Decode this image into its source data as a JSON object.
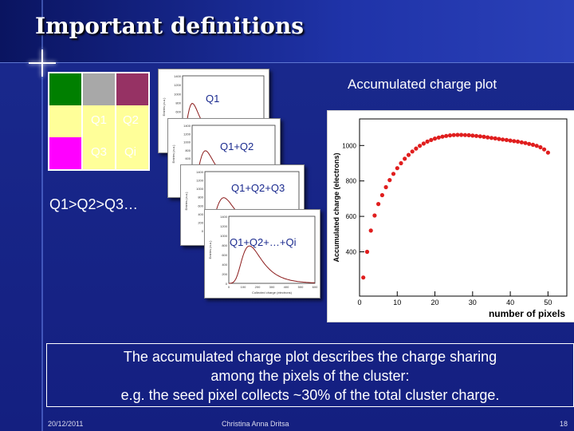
{
  "slide": {
    "title": "Important definitions",
    "accumulated_title": "Accumulated charge plot",
    "order_text": "Q1>Q2>Q3…",
    "caption_lines": [
      "The accumulated charge plot describes the charge sharing",
      "among the pixels of the cluster:",
      "e.g. the seed pixel collects ~30% of the total cluster charge."
    ],
    "footer_date": "20/12/2011",
    "footer_author": "Christina Anna Dritsa",
    "footer_page": "18"
  },
  "pixel_grid": {
    "colors": [
      "#007f00",
      "#a8a8a8",
      "#963264",
      "#ffff99",
      "#ff00ff"
    ],
    "labels": [
      "Q1",
      "Q2",
      "Q3",
      "Qi"
    ]
  },
  "stack_labels": [
    "Q1",
    "Q1+Q2",
    "Q1+Q2+Q3",
    "Q1+Q2+…+Qi"
  ],
  "histogram": {
    "ylabel": "Entries (a.u.)",
    "xlabel": "Collected charge (electrons)",
    "yticks": [
      "1400",
      "1200",
      "1000",
      "800",
      "600",
      "400",
      "200",
      "0"
    ],
    "xticks": [
      "0",
      "100",
      "200",
      "300",
      "400",
      "500",
      "600"
    ]
  },
  "chart_data": {
    "type": "scatter",
    "xlabel": "number of pixels",
    "ylabel": "Accumulated charge (electrons)",
    "xlim": [
      0,
      55
    ],
    "ylim": [
      150,
      1150
    ],
    "xticks": [
      0,
      10,
      20,
      30,
      40,
      50
    ],
    "yticks": [
      400,
      600,
      800,
      1000
    ],
    "color": "#e01e1e",
    "x": [
      1,
      2,
      3,
      4,
      5,
      6,
      7,
      8,
      9,
      10,
      11,
      12,
      13,
      14,
      15,
      16,
      17,
      18,
      19,
      20,
      21,
      22,
      23,
      24,
      25,
      26,
      27,
      28,
      29,
      30,
      31,
      32,
      33,
      34,
      35,
      36,
      37,
      38,
      39,
      40,
      41,
      42,
      43,
      44,
      45,
      46,
      47,
      48,
      49,
      50
    ],
    "y": [
      255,
      400,
      520,
      605,
      670,
      720,
      765,
      805,
      840,
      872,
      900,
      925,
      947,
      966,
      983,
      998,
      1011,
      1022,
      1031,
      1039,
      1045,
      1050,
      1054,
      1057,
      1059,
      1060,
      1060,
      1059,
      1058,
      1056,
      1054,
      1052,
      1049,
      1046,
      1043,
      1040,
      1037,
      1034,
      1031,
      1028,
      1025,
      1022,
      1018,
      1014,
      1009,
      1004,
      998,
      990,
      978,
      960
    ]
  }
}
